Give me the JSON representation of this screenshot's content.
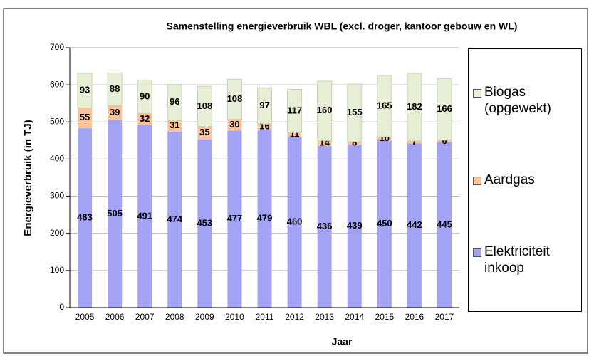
{
  "chart_data": {
    "type": "stacked_bar",
    "title": "Samenstelling  energieverbruik WBL (excl. droger, kantoor gebouw en WL)",
    "x_label": "Jaar",
    "y_label": "Energieverbruik  (in TJ)",
    "categories": [
      "2005",
      "2006",
      "2007",
      "2008",
      "2009",
      "2010",
      "2011",
      "2012",
      "2013",
      "2014",
      "2015",
      "2016",
      "2017"
    ],
    "series": [
      {
        "name": "Elektriciteit inkoop",
        "color": "#a3a3f5",
        "values": [
          483,
          505,
          491,
          474,
          453,
          477,
          479,
          460,
          436,
          439,
          450,
          442,
          445
        ]
      },
      {
        "name": "Aardgas",
        "color": "#f9c29a",
        "values": [
          55,
          39,
          32,
          31,
          35,
          30,
          16,
          11,
          14,
          8,
          10,
          7,
          6
        ]
      },
      {
        "name": "Biogas (opgewekt)",
        "color": "#e6eed6",
        "values": [
          93,
          88,
          90,
          96,
          108,
          108,
          97,
          117,
          160,
          155,
          165,
          182,
          166
        ]
      }
    ],
    "ylim": [
      0,
      700
    ],
    "yticks": [
      0,
      100,
      200,
      300,
      400,
      500,
      600,
      700
    ],
    "grid": true,
    "legend": "right"
  }
}
